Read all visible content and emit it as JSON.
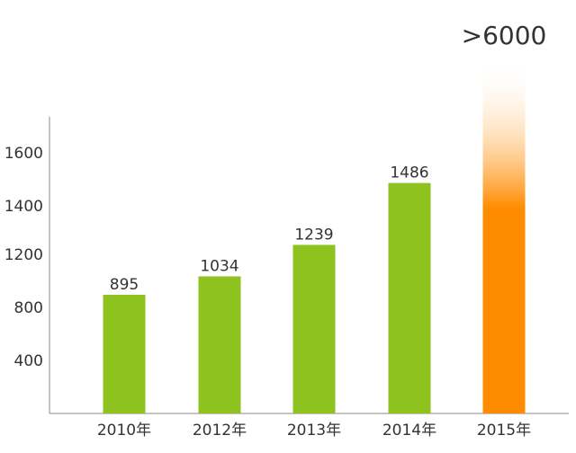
{
  "chart_data": {
    "type": "bar",
    "categories": [
      "2010年",
      "2012年",
      "2013年",
      "2014年",
      "2015年"
    ],
    "values": [
      895,
      1034,
      1239,
      1486,
      6000
    ],
    "value_labels": [
      "895",
      "1034",
      "1239",
      "1486",
      ">6000"
    ],
    "y_ticks": [
      "400",
      "800",
      "1200",
      "1400",
      "1600"
    ],
    "title": "",
    "xlabel": "",
    "ylabel": "",
    "grid": false,
    "legend": "none",
    "axis_break": "last bar exceeds axis top; drawn as a fading column",
    "colors": {
      "bar": "#8dc21f",
      "highlight_bar": "#ff8c00",
      "highlight_bar_fade": "#ffffff",
      "axis": "#888888",
      "text": "#333333"
    }
  }
}
